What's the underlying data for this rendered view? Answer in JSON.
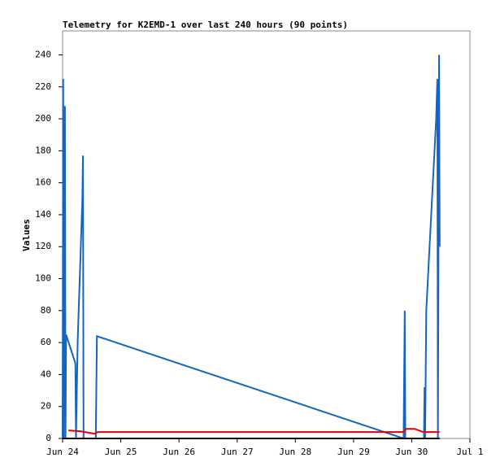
{
  "chart_data": {
    "type": "line",
    "title": "Telemetry for K2EMD-1 over last 240 hours (90 points)",
    "ylabel": "Values",
    "xlim": [
      0,
      7
    ],
    "xticks": [
      {
        "value": 0,
        "label": "Jun 24"
      },
      {
        "value": 1,
        "label": "Jun 25"
      },
      {
        "value": 2,
        "label": "Jun 26"
      },
      {
        "value": 3,
        "label": "Jun 27"
      },
      {
        "value": 4,
        "label": "Jun 28"
      },
      {
        "value": 5,
        "label": "Jun 29"
      },
      {
        "value": 6,
        "label": "Jun 30"
      },
      {
        "value": 7,
        "label": "Jul 1"
      }
    ],
    "ylim": [
      0,
      255
    ],
    "yticks": [
      0,
      20,
      40,
      60,
      80,
      100,
      120,
      140,
      160,
      180,
      200,
      220,
      240
    ],
    "series": [
      {
        "color": "#1565c0",
        "x": [
          0,
          0.01,
          0.02,
          0.04,
          0.05,
          0.06,
          0.22,
          0.23,
          0.26,
          0.34,
          0.35,
          0.36,
          0.57,
          0.59,
          5.86,
          5.88,
          5.89,
          6.21,
          6.22,
          6.23,
          6.25,
          6.42,
          6.44,
          6.45,
          6.47,
          6.48
        ],
        "values": [
          0,
          225,
          0,
          208,
          0,
          65,
          47,
          0,
          62,
          150,
          177,
          0,
          0,
          64,
          0,
          80,
          0,
          0,
          32,
          0,
          80,
          200,
          225,
          0,
          240,
          120
        ]
      },
      {
        "color": "#e00000",
        "x": [
          0.1,
          0.3,
          0.55,
          0.6,
          5.85,
          5.9,
          6.05,
          6.2,
          6.48
        ],
        "values": [
          5,
          4.5,
          3,
          4,
          4,
          6,
          6,
          4,
          4
        ]
      },
      {
        "color": "#000000",
        "x": [
          0,
          6.48
        ],
        "values": [
          0,
          0
        ]
      }
    ]
  }
}
